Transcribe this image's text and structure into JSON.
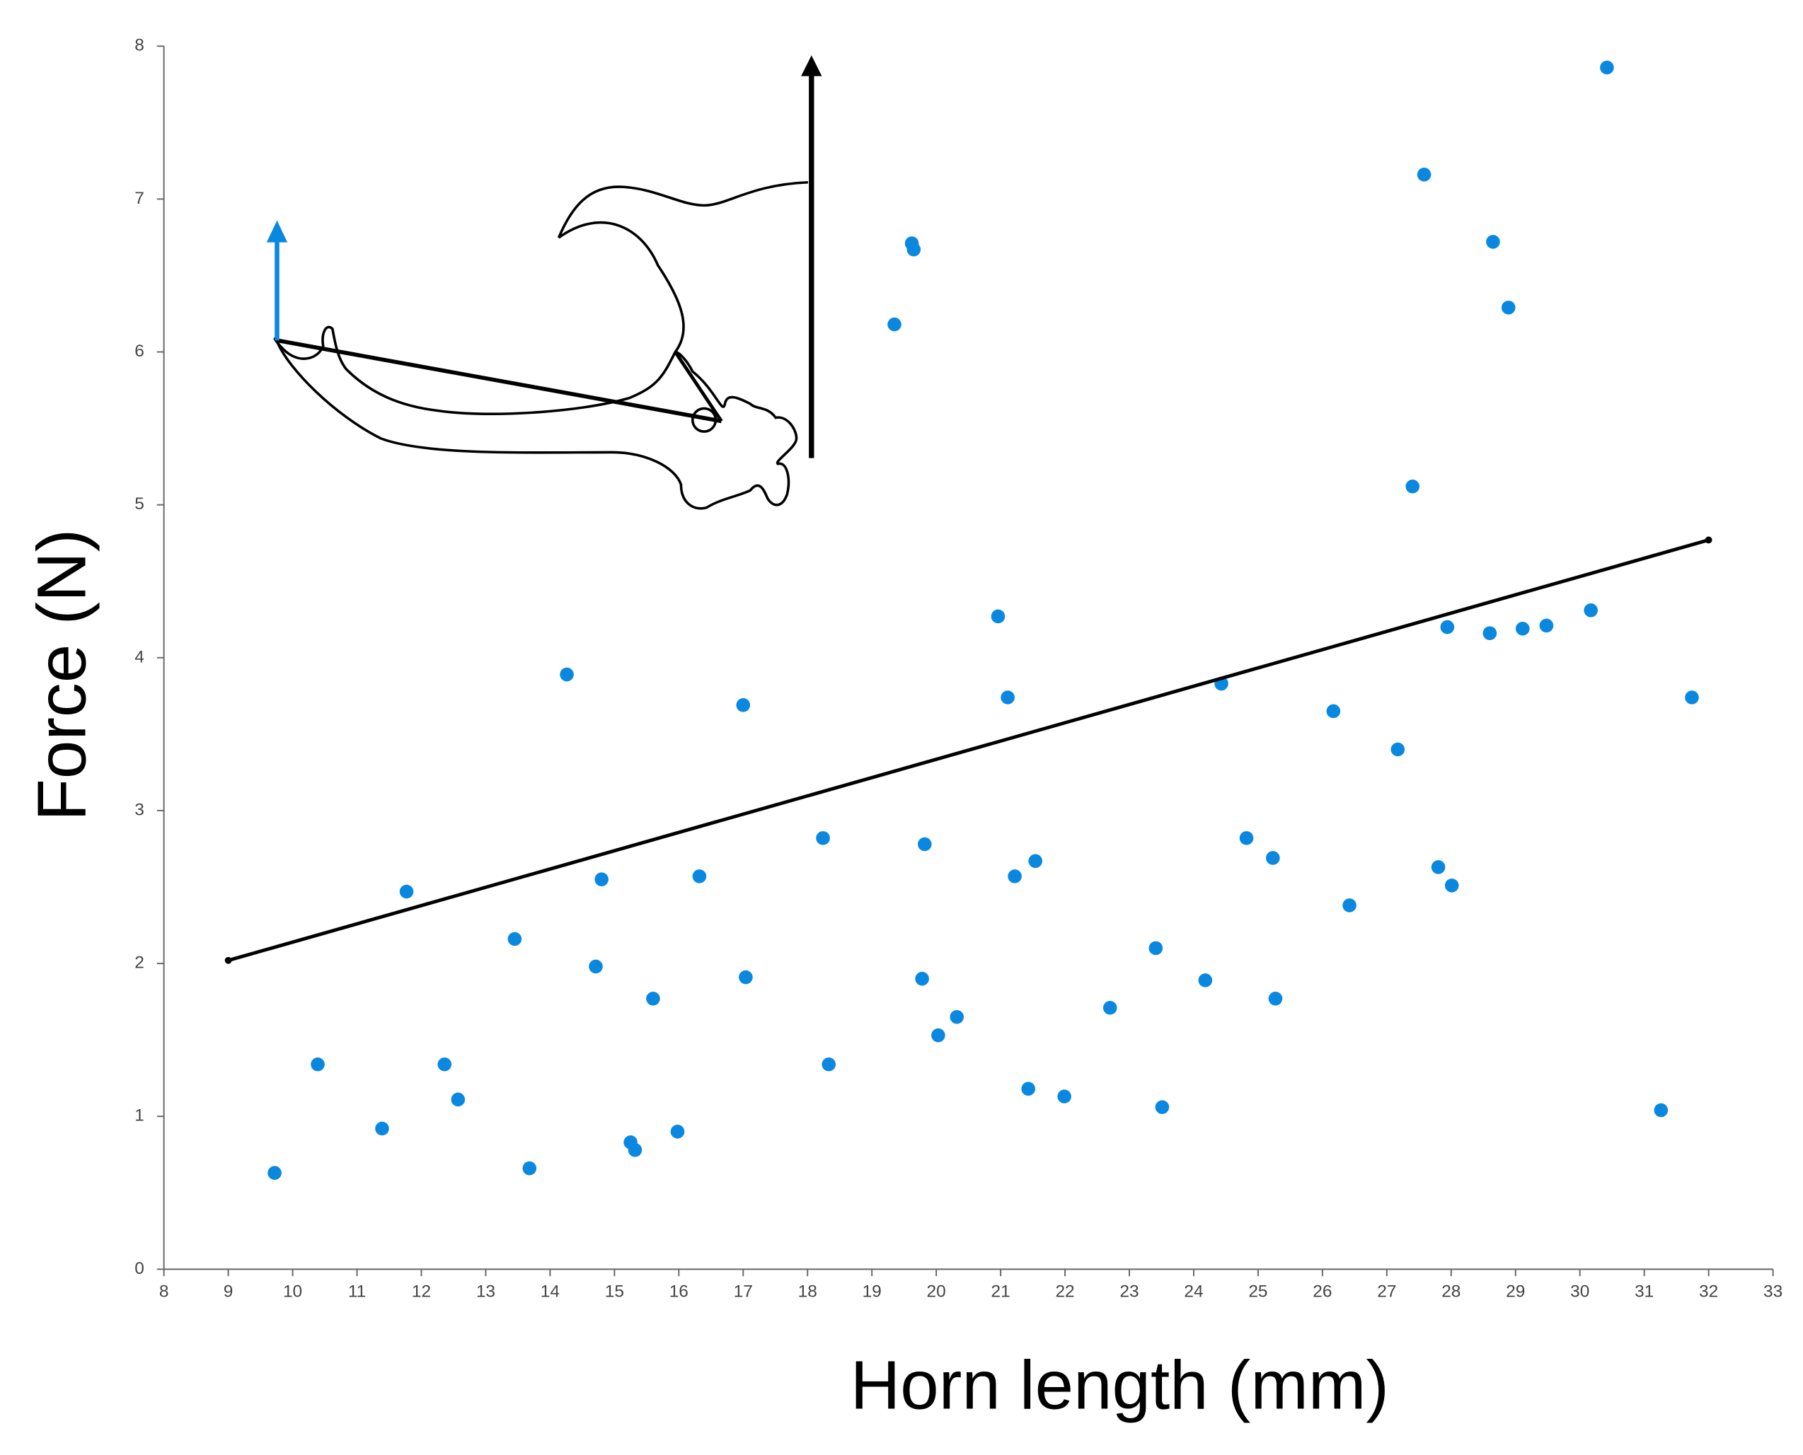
{
  "chart_data": {
    "type": "scatter",
    "x_label": "Horn length (mm)",
    "y_label": "Force (N)",
    "xlim": [
      8,
      33
    ],
    "ylim": [
      0,
      8
    ],
    "xticks": [
      8,
      9,
      10,
      11,
      12,
      13,
      14,
      15,
      16,
      17,
      18,
      19,
      20,
      21,
      22,
      23,
      24,
      25,
      26,
      27,
      28,
      29,
      30,
      31,
      32,
      33
    ],
    "yticks": [
      0,
      1,
      2,
      3,
      4,
      5,
      6,
      7,
      8
    ],
    "grid": false,
    "series": [
      {
        "type": "scatter",
        "color": "#0a88e0",
        "x": [
          9.72,
          10.39,
          11.39,
          11.77,
          12.36,
          12.57,
          13.45,
          13.68,
          14.26,
          14.71,
          14.8,
          15.25,
          15.32,
          15.6,
          15.98,
          16.32,
          17.0,
          17.04,
          18.24,
          18.33,
          19.35,
          19.62,
          19.65,
          19.78,
          19.82,
          20.03,
          20.32,
          20.96,
          21.11,
          21.22,
          21.43,
          21.54,
          21.99,
          22.7,
          23.41,
          23.51,
          24.18,
          24.43,
          24.82,
          25.23,
          25.27,
          26.17,
          26.42,
          27.17,
          27.4,
          27.58,
          27.8,
          27.94,
          28.01,
          28.6,
          28.65,
          28.89,
          29.11,
          29.48,
          30.17,
          30.42,
          31.26,
          31.74
        ],
        "values": [
          0.63,
          1.34,
          0.92,
          2.47,
          1.34,
          1.11,
          2.16,
          0.66,
          3.89,
          1.98,
          2.55,
          0.83,
          0.78,
          1.77,
          0.9,
          2.57,
          3.69,
          1.91,
          2.82,
          1.34,
          6.18,
          6.71,
          6.67,
          1.9,
          2.78,
          1.53,
          1.65,
          4.27,
          3.74,
          2.57,
          1.18,
          2.67,
          1.13,
          1.71,
          2.1,
          1.06,
          1.89,
          3.83,
          2.82,
          2.69,
          1.77,
          3.65,
          2.38,
          3.4,
          5.12,
          7.16,
          2.63,
          4.2,
          2.51,
          4.16,
          6.72,
          6.29,
          4.19,
          4.21,
          4.31,
          7.86,
          1.04,
          3.74
        ]
      },
      {
        "type": "line",
        "color": "#000000",
        "x": [
          9,
          32
        ],
        "values": [
          2.02,
          4.77
        ]
      }
    ]
  }
}
